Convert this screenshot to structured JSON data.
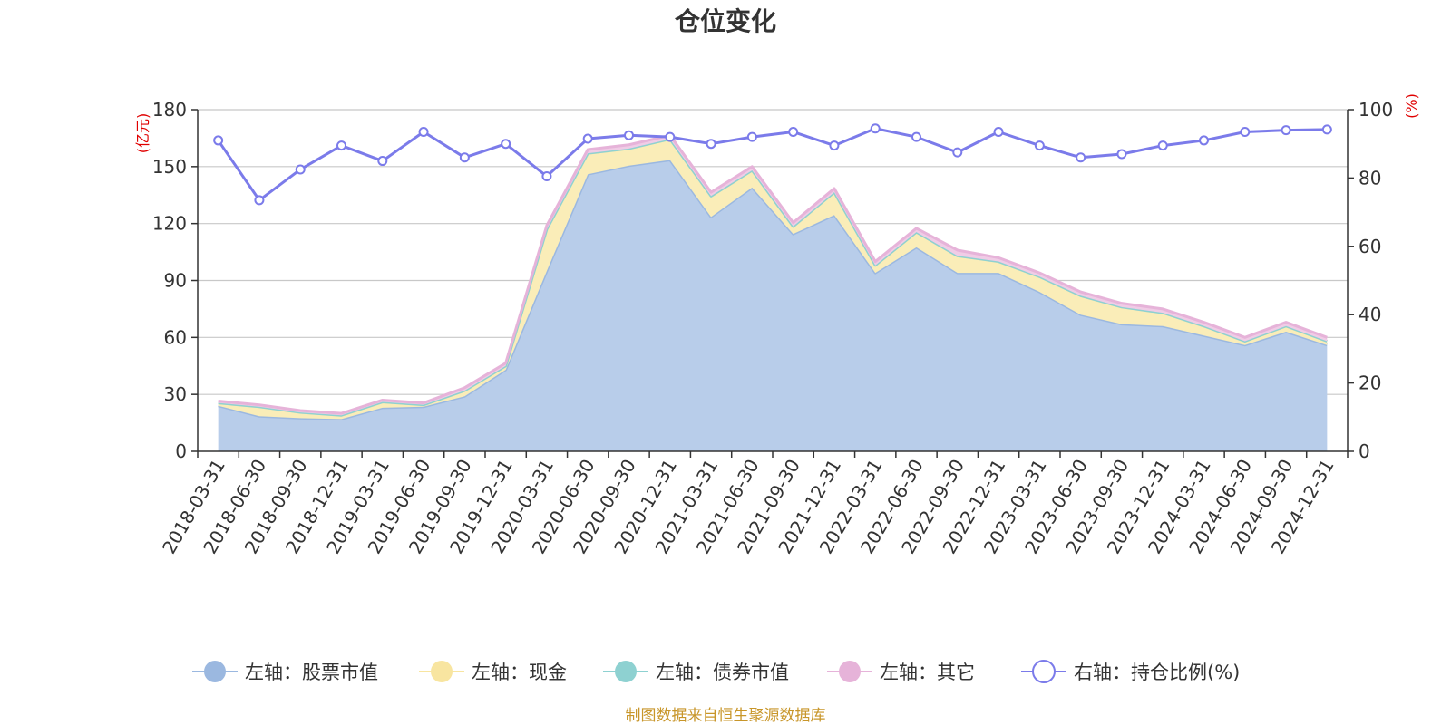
{
  "chart_data": {
    "type": "area",
    "title": "仓位变化",
    "source_note": "制图数据来自恒生聚源数据库",
    "y_left": {
      "unit": "(亿元)",
      "ylim": [
        0,
        180
      ],
      "ticks": [
        "0",
        "30",
        "60",
        "90",
        "120",
        "150",
        "180"
      ]
    },
    "y_right": {
      "unit": "(%)",
      "ylim": [
        0,
        100
      ],
      "ticks": [
        "0",
        "20",
        "40",
        "60",
        "80",
        "100"
      ]
    },
    "categories": [
      "2018-03-31",
      "2018-06-30",
      "2018-09-30",
      "2018-12-31",
      "2019-03-31",
      "2019-06-30",
      "2019-09-30",
      "2019-12-31",
      "2020-03-31",
      "2020-06-30",
      "2020-09-30",
      "2020-12-31",
      "2021-03-31",
      "2021-06-30",
      "2021-09-30",
      "2021-12-31",
      "2022-03-31",
      "2022-06-30",
      "2022-09-30",
      "2022-12-31",
      "2023-03-31",
      "2023-06-30",
      "2023-09-30",
      "2023-12-31",
      "2024-03-31",
      "2024-06-30",
      "2024-09-30",
      "2024-12-31"
    ],
    "series": [
      {
        "name": "左轴：股票市值",
        "axis": "left",
        "kind": "stacked-area",
        "color": "#9bb8e0",
        "fill": "#b8cdea",
        "values": [
          24,
          18.5,
          17.5,
          17,
          23,
          23.5,
          29,
          43,
          95,
          146,
          150.5,
          153.5,
          123.5,
          139,
          114.5,
          124.5,
          94,
          107.5,
          94,
          94,
          84,
          72,
          67,
          66,
          61,
          56,
          63,
          56
        ]
      },
      {
        "name": "左轴：现金",
        "axis": "left",
        "kind": "stacked-area",
        "color": "#f8e5a0",
        "fill": "#faedb8",
        "values": [
          1.5,
          5,
          3,
          2,
          3,
          1,
          3,
          2,
          22,
          11,
          9,
          11,
          11,
          9,
          4,
          12,
          4,
          8,
          9,
          6,
          8,
          10,
          9,
          7,
          5,
          2,
          3,
          2
        ]
      },
      {
        "name": "左轴：债券市值",
        "axis": "left",
        "kind": "stacked-area",
        "color": "#8ed1d1",
        "fill": "#8ed1d1",
        "values": [
          0,
          0,
          0,
          0,
          0,
          0,
          0,
          0,
          0,
          0,
          0,
          0,
          0,
          0,
          0,
          0,
          0,
          0,
          0,
          0,
          0,
          0,
          0,
          0,
          0,
          0,
          0,
          0
        ]
      },
      {
        "name": "左轴：其它",
        "axis": "left",
        "kind": "stacked-area",
        "color": "#e6b3d9",
        "fill": "#f0cce6",
        "values": [
          1,
          1,
          1,
          1,
          1,
          1,
          1.5,
          1.5,
          2,
          2,
          2,
          2,
          2,
          2,
          2,
          2,
          2,
          2,
          3,
          2,
          2,
          2,
          2,
          2,
          2,
          2,
          2,
          2
        ]
      },
      {
        "name": "右轴：持仓比例(%)",
        "axis": "right",
        "kind": "line",
        "color": "#7b7bea",
        "values": [
          91,
          73.5,
          82.5,
          89.5,
          85,
          93.5,
          86,
          90,
          80.5,
          91.5,
          92.5,
          92,
          90,
          92,
          93.5,
          89.5,
          94.5,
          92,
          87.5,
          93.5,
          89.5,
          86,
          87,
          89.5,
          91,
          93.5,
          94,
          94.2
        ]
      }
    ],
    "legend_position": "bottom",
    "grid": true
  }
}
